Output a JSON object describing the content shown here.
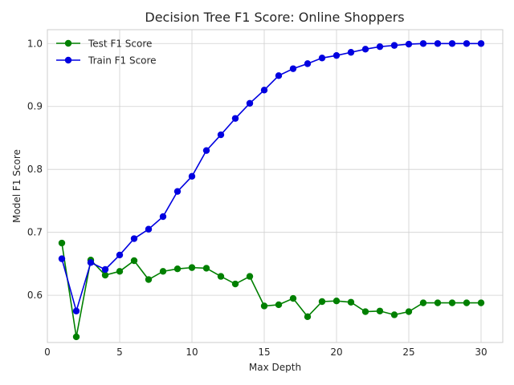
{
  "chart_data": {
    "type": "line",
    "title": "Decision Tree F1 Score: Online Shoppers",
    "xlabel": "Max Depth",
    "ylabel": "Model F1 Score",
    "xlim": [
      0,
      31.5
    ],
    "ylim": [
      0.525,
      1.022
    ],
    "xticks": [
      "0",
      "5",
      "10",
      "15",
      "20",
      "25",
      "30"
    ],
    "yticks": [
      "0.6",
      "0.7",
      "0.8",
      "0.9",
      "1.0"
    ],
    "grid": true,
    "legend_position": "top-left",
    "x": [
      1,
      2,
      3,
      4,
      5,
      6,
      7,
      8,
      9,
      10,
      11,
      12,
      13,
      14,
      15,
      16,
      17,
      18,
      19,
      20,
      21,
      22,
      23,
      24,
      25,
      26,
      27,
      28,
      29,
      30
    ],
    "series": [
      {
        "name": "Test F1 Score",
        "color": "#008000",
        "marker": "circle",
        "values": [
          0.683,
          0.534,
          0.656,
          0.632,
          0.638,
          0.655,
          0.625,
          0.638,
          0.642,
          0.644,
          0.643,
          0.63,
          0.618,
          0.63,
          0.583,
          0.585,
          0.595,
          0.566,
          0.59,
          0.591,
          0.589,
          0.574,
          0.575,
          0.569,
          0.574,
          0.588,
          0.588,
          0.588,
          0.588,
          0.588
        ]
      },
      {
        "name": "Train F1 Score",
        "color": "#0000e0",
        "marker": "circle",
        "values": [
          0.658,
          0.575,
          0.652,
          0.641,
          0.664,
          0.69,
          0.705,
          0.725,
          0.765,
          0.789,
          0.83,
          0.855,
          0.881,
          0.905,
          0.926,
          0.949,
          0.96,
          0.968,
          0.977,
          0.981,
          0.986,
          0.991,
          0.995,
          0.997,
          0.999,
          1.0,
          1.0,
          1.0,
          1.0,
          1.0
        ]
      }
    ]
  }
}
